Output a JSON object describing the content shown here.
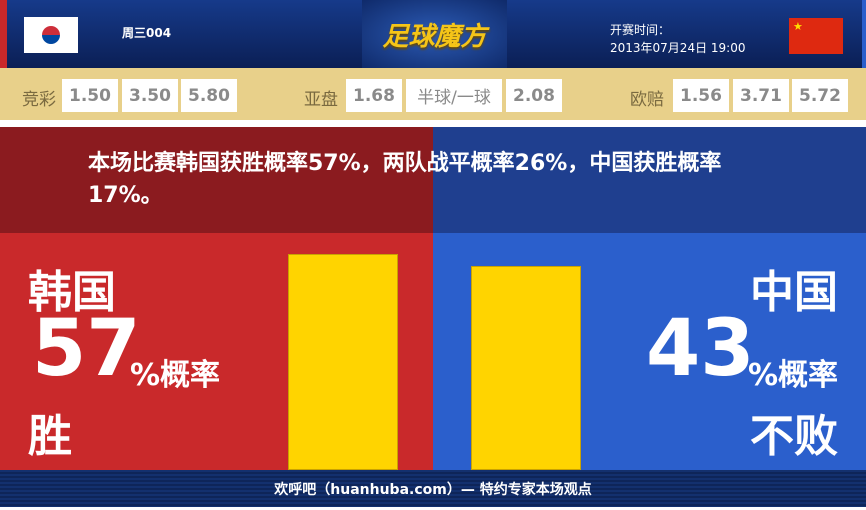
{
  "header": {
    "match_code": "周三004",
    "logo": "足球魔方",
    "start_label": "开赛时间：",
    "start_time": "2013年07月24日 19:00",
    "home_flag": "south-korea-flag",
    "away_flag": "china-flag"
  },
  "odds": {
    "jingcai": {
      "label": "竞彩",
      "values": [
        "1.50",
        "3.50",
        "5.80"
      ]
    },
    "yapan": {
      "label": "亚盘",
      "values": [
        "1.68",
        "半球/一球",
        "2.08"
      ]
    },
    "oupei": {
      "label": "欧赔",
      "values": [
        "1.56",
        "3.71",
        "5.72"
      ]
    }
  },
  "banner": "本场比赛韩国获胜概率57%，两队战平概率26%，中国获胜概率17%。",
  "home": {
    "team": "韩国",
    "percent": "57",
    "unit": "%概率",
    "outcome": "胜",
    "value": 57
  },
  "away": {
    "team": "中国",
    "percent": "43",
    "unit": "%概率",
    "outcome": "不败",
    "value": 43
  },
  "colors": {
    "home": "#c9292b",
    "away": "#2b5fcc",
    "bar": "#ffd400"
  },
  "footer": "欢呼吧（huanhuba.com）— 特约专家本场观点"
}
